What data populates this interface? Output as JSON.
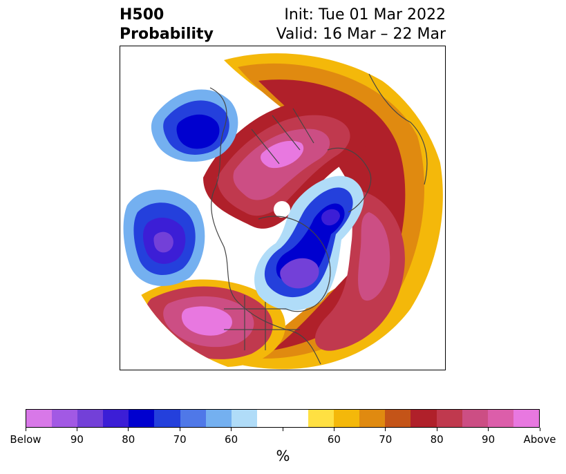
{
  "header": {
    "left_line1": "H500",
    "left_line2": "Probability",
    "right_line1": "Init: Tue 01 Mar 2022",
    "right_line2": "Valid: 16 Mar – 22 Mar"
  },
  "colorbar": {
    "colors": [
      "#d878e8",
      "#a259e4",
      "#7340d8",
      "#3c1ed6",
      "#0000cf",
      "#2440dc",
      "#4f78e8",
      "#74b0f0",
      "#b0dcf8",
      "#ffffff",
      "#ffffff",
      "#ffe042",
      "#f4b80a",
      "#e08a10",
      "#c45418",
      "#b0202a",
      "#c0394e",
      "#cc4e84",
      "#dc5eaa",
      "#e878e0"
    ],
    "tick_labels": [
      "Below",
      "90",
      "80",
      "70",
      "60",
      "",
      "60",
      "70",
      "80",
      "90",
      "Above"
    ],
    "unit_label": "%"
  },
  "map": {
    "description_colors": {
      "below_strong": "#6a3ad8",
      "below": "#0000cf",
      "above": "#b0202a",
      "above_strong": "#e878e0",
      "coastline": "#444444"
    }
  }
}
